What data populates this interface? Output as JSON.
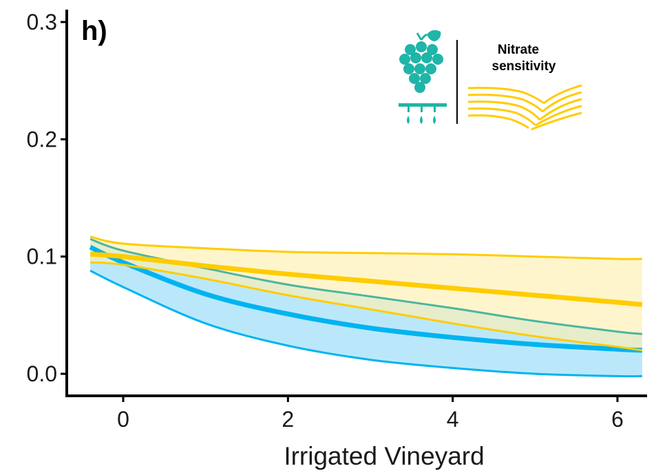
{
  "chart_data": {
    "type": "area",
    "panel_label": "h)",
    "xlabel": "Irrigated Vineyard",
    "ylabel": "",
    "xlim": [
      -0.4,
      6.3
    ],
    "ylim": [
      -0.02,
      0.31
    ],
    "x_ticks": [
      0,
      2,
      4,
      6
    ],
    "x_tick_labels": [
      "0",
      "2",
      "4",
      "6"
    ],
    "y_ticks": [
      0.0,
      0.1,
      0.2,
      0.3
    ],
    "y_tick_labels": [
      "0.0",
      "0.1",
      "0.2",
      "0.3"
    ],
    "grid": false,
    "legend": {
      "placement": "top-right",
      "text": [
        "Nitrate",
        "sensitivity"
      ],
      "icons": [
        "grape-irrigation-icon",
        "field-rows-icon"
      ]
    },
    "series": [
      {
        "color": "#00b3f0",
        "band_fill": "#b3e6fa",
        "x": [
          -0.4,
          0,
          1,
          2,
          3,
          4,
          5,
          6,
          6.3
        ],
        "mean": [
          0.108,
          0.095,
          0.068,
          0.051,
          0.039,
          0.031,
          0.025,
          0.021,
          0.02
        ],
        "lower": [
          0.088,
          0.074,
          0.043,
          0.024,
          0.012,
          0.005,
          0.0,
          -0.002,
          -0.002
        ],
        "upper": [
          0.115,
          0.105,
          0.09,
          0.076,
          0.066,
          0.056,
          0.045,
          0.036,
          0.034
        ]
      },
      {
        "color": "#ffcc00",
        "band_fill": "#fff0b0",
        "x": [
          -0.4,
          0,
          1,
          2,
          3,
          4,
          5,
          6,
          6.3
        ],
        "mean": [
          0.102,
          0.1,
          0.092,
          0.085,
          0.079,
          0.073,
          0.067,
          0.061,
          0.059
        ],
        "lower": [
          0.095,
          0.093,
          0.081,
          0.067,
          0.055,
          0.043,
          0.032,
          0.023,
          0.02
        ],
        "upper": [
          0.117,
          0.111,
          0.107,
          0.104,
          0.103,
          0.102,
          0.1,
          0.098,
          0.098
        ]
      }
    ]
  },
  "colors": {
    "teal_icon": "#1fb5a8",
    "yellow_icon": "#ffcc00",
    "axis": "#000000"
  }
}
